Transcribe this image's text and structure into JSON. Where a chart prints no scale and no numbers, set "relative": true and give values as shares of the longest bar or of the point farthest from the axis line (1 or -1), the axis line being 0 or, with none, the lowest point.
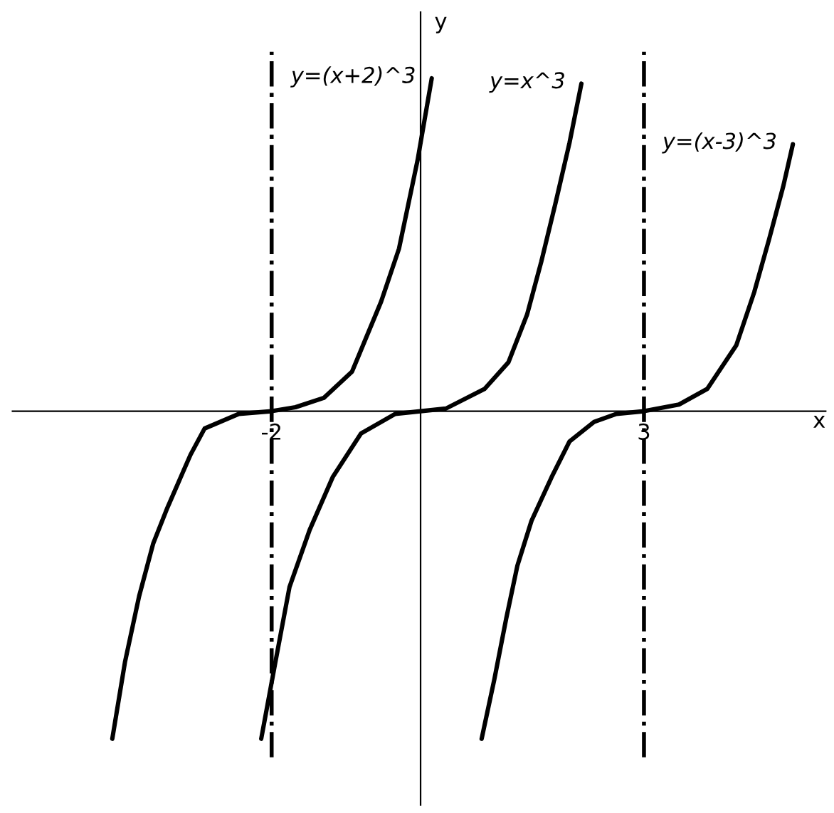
{
  "chart_data": {
    "type": "line",
    "relative": true,
    "xlabel": "x",
    "ylabel": "y",
    "xlim": [
      -5.48,
      5.44
    ],
    "xticks": [
      -2,
      3
    ],
    "grid": false,
    "legend": false,
    "marker": "none",
    "line_style": "solid",
    "ref_lines": [
      {
        "axis": "x",
        "value": -2,
        "color": "#000000",
        "line_style": "dashdot"
      },
      {
        "axis": "x",
        "value": 3,
        "color": "#000000",
        "line_style": "dashdot"
      }
    ],
    "series": [
      {
        "name": "y=(x+2)^3",
        "color": "#000000",
        "x": [
          -4.14,
          -3.97,
          -3.78,
          -3.59,
          -3.4,
          -3.09,
          -2.9,
          -2.44,
          -2.0,
          -1.68,
          -1.3,
          -0.92,
          -0.53,
          -0.29,
          -0.04,
          0.15
        ],
        "values": [
          -0.984,
          -0.754,
          -0.556,
          -0.397,
          -0.29,
          -0.131,
          -0.052,
          -0.008,
          0,
          0.012,
          0.04,
          0.119,
          0.329,
          0.488,
          0.754,
          1.0
        ]
      },
      {
        "name": "y=x^3",
        "color": "#000000",
        "x": [
          -2.14,
          -1.95,
          -1.76,
          -1.49,
          -1.18,
          -0.8,
          -0.34,
          0,
          0.34,
          0.86,
          1.18,
          1.43,
          1.62,
          1.81,
          2.0,
          2.16
        ],
        "values": [
          -0.984,
          -0.754,
          -0.528,
          -0.357,
          -0.198,
          -0.067,
          -0.008,
          0,
          0.008,
          0.067,
          0.147,
          0.29,
          0.448,
          0.623,
          0.806,
          0.984
        ]
      },
      {
        "name": "y=(x-3)^3",
        "color": "#000000",
        "x": [
          0.82,
          0.99,
          1.15,
          1.3,
          1.49,
          1.76,
          2.0,
          2.33,
          2.63,
          3.0,
          3.47,
          3.85,
          4.24,
          4.48,
          4.68,
          4.87,
          5.0
        ],
        "values": [
          -0.984,
          -0.806,
          -0.623,
          -0.464,
          -0.329,
          -0.198,
          -0.091,
          -0.032,
          -0.008,
          0,
          0.02,
          0.067,
          0.198,
          0.357,
          0.516,
          0.675,
          0.802
        ]
      }
    ]
  }
}
